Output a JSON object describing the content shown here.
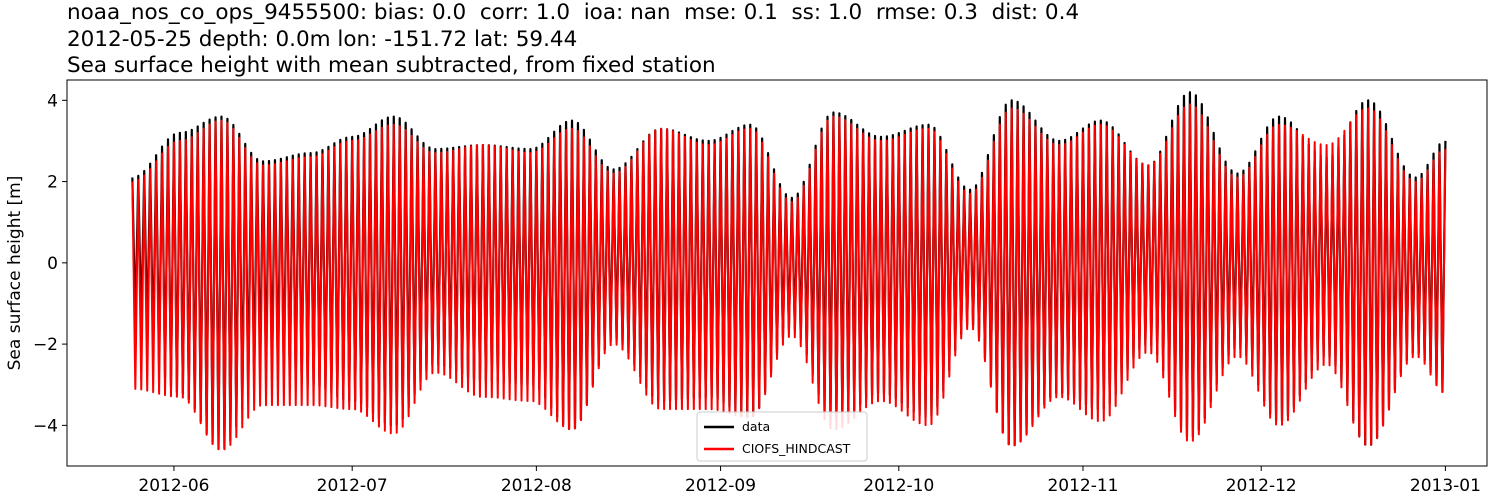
{
  "title_lines": [
    "noaa_nos_co_ops_9455500: bias: 0.0  corr: 1.0  ioa: nan  mse: 0.1  ss: 1.0  rmse: 0.3  dist: 0.4",
    "2012-05-25 depth: 0.0m lon: -151.72 lat: 59.44",
    "Sea surface height with mean subtracted, from fixed station"
  ],
  "chart_data": {
    "type": "line",
    "title": "noaa_nos_co_ops_9455500: bias: 0.0  corr: 1.0  ioa: nan  mse: 0.1  ss: 1.0  rmse: 0.3  dist: 0.4 / 2012-05-25 depth: 0.0m lon: -151.72 lat: 59.44 / Sea surface height with mean subtracted, from fixed station",
    "xlabel": "",
    "ylabel": "Sea surface height [m]",
    "xlim": [
      "2012-05-14",
      "2013-01-08"
    ],
    "ylim": [
      -5.0,
      4.5
    ],
    "x_ticks": [
      "2012-06",
      "2012-07",
      "2012-08",
      "2012-09",
      "2012-10",
      "2012-11",
      "2012-12",
      "2013-01"
    ],
    "y_ticks": [
      -4,
      -2,
      0,
      2,
      4
    ],
    "grid": false,
    "legend_position": "lower center",
    "series": [
      {
        "name": "data",
        "color": "#000000",
        "x": [
          "2012-05-25",
          "2012-06-02",
          "2012-06-09",
          "2012-06-16",
          "2012-06-24",
          "2012-07-01",
          "2012-07-08",
          "2012-07-15",
          "2012-07-23",
          "2012-07-31",
          "2012-08-07",
          "2012-08-14",
          "2012-08-22",
          "2012-08-30",
          "2012-09-06",
          "2012-09-13",
          "2012-09-20",
          "2012-09-28",
          "2012-10-06",
          "2012-10-13",
          "2012-10-20",
          "2012-10-28",
          "2012-11-04",
          "2012-11-12",
          "2012-11-19",
          "2012-11-27",
          "2012-12-04",
          "2012-12-12",
          "2012-12-19",
          "2012-12-27",
          "2013-01-01"
        ],
        "upper": [
          2.1,
          3.2,
          3.6,
          2.5,
          2.7,
          3.1,
          3.6,
          2.8,
          2.9,
          2.8,
          3.5,
          2.3,
          3.3,
          3.0,
          3.4,
          1.6,
          3.7,
          3.1,
          3.4,
          1.8,
          4.0,
          3.0,
          3.5,
          2.4,
          4.2,
          2.2,
          3.6,
          2.6,
          4.0,
          2.1,
          3.0
        ],
        "lower": [
          -1.5,
          -3.2,
          -4.6,
          -2.6,
          -3.0,
          -3.4,
          -4.0,
          -2.5,
          -2.9,
          -3.0,
          -4.1,
          -1.9,
          -3.4,
          -3.3,
          -3.8,
          -1.6,
          -3.9,
          -3.2,
          -3.8,
          -1.5,
          -4.5,
          -3.2,
          -3.6,
          -2.0,
          -4.3,
          -2.1,
          -3.9,
          -2.3,
          -4.5,
          -2.2,
          -3.2
        ]
      },
      {
        "name": "CIOFS_HINDCAST",
        "color": "#ff0000",
        "x": [
          "2012-05-25",
          "2012-06-02",
          "2012-06-09",
          "2012-06-16",
          "2012-06-24",
          "2012-07-01",
          "2012-07-08",
          "2012-07-15",
          "2012-07-23",
          "2012-07-31",
          "2012-08-07",
          "2012-08-14",
          "2012-08-22",
          "2012-08-30",
          "2012-09-06",
          "2012-09-13",
          "2012-09-20",
          "2012-09-28",
          "2012-10-06",
          "2012-10-13",
          "2012-10-20",
          "2012-10-28",
          "2012-11-04",
          "2012-11-12",
          "2012-11-19",
          "2012-11-27",
          "2012-12-04",
          "2012-12-12",
          "2012-12-19",
          "2012-12-27",
          "2013-01-01"
        ],
        "upper": [
          2.0,
          3.0,
          3.5,
          2.4,
          2.6,
          3.0,
          3.4,
          2.7,
          2.9,
          2.7,
          3.3,
          2.2,
          3.3,
          2.9,
          3.3,
          1.5,
          3.6,
          3.0,
          3.3,
          1.7,
          3.8,
          2.9,
          3.4,
          2.4,
          3.9,
          2.1,
          3.4,
          2.9,
          3.8,
          2.0,
          2.8
        ],
        "lower": [
          -3.1,
          -3.3,
          -4.6,
          -3.5,
          -3.5,
          -3.6,
          -4.2,
          -2.7,
          -3.3,
          -3.4,
          -4.1,
          -2.0,
          -3.6,
          -3.6,
          -3.8,
          -1.8,
          -4.1,
          -3.4,
          -4.0,
          -1.6,
          -4.5,
          -3.3,
          -3.9,
          -2.2,
          -4.4,
          -2.3,
          -4.0,
          -2.5,
          -4.5,
          -2.3,
          -3.2
        ]
      }
    ]
  }
}
